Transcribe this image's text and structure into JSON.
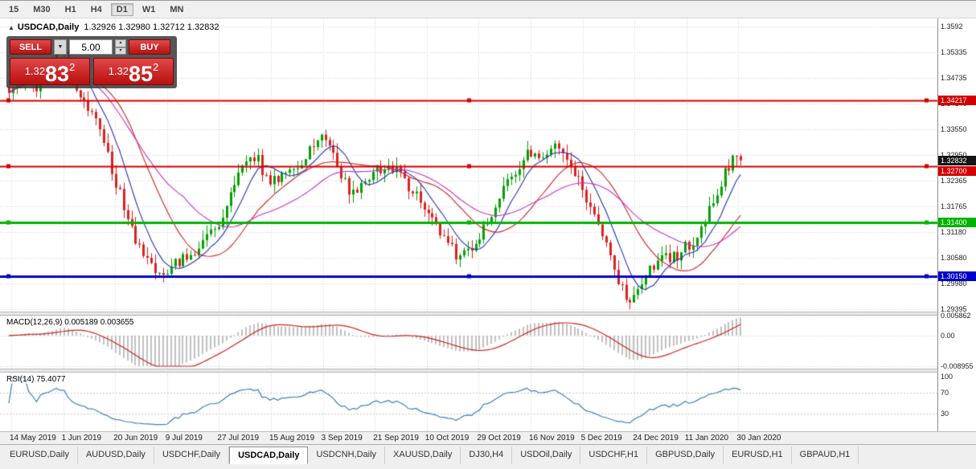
{
  "toolbar": {
    "timeframes": [
      {
        "label": "15",
        "active": false
      },
      {
        "label": "M30",
        "active": false
      },
      {
        "label": "H1",
        "active": false
      },
      {
        "label": "H4",
        "active": false
      },
      {
        "label": "D1",
        "active": true
      },
      {
        "label": "W1",
        "active": false
      },
      {
        "label": "MN",
        "active": false
      }
    ]
  },
  "chart": {
    "collapse_icon": "▲",
    "symbol_title": "USDCAD,Daily",
    "ohlc": "1.32926 1.32980 1.32712 1.32832"
  },
  "trade_panel": {
    "sell_label": "SELL",
    "buy_label": "BUY",
    "volume": "5.00",
    "sell_price": {
      "prefix": "1.32",
      "big": "83",
      "sup": "2"
    },
    "buy_price": {
      "prefix": "1.32",
      "big": "85",
      "sup": "2"
    }
  },
  "price_scale": {
    "labels": [
      {
        "text": "1.3592",
        "value": 1.3592
      },
      {
        "text": "1.35335",
        "value": 1.35335
      },
      {
        "text": "1.34735",
        "value": 1.34735
      },
      {
        "text": "1.34140",
        "value": 1.3414
      },
      {
        "text": "1.33550",
        "value": 1.3355
      },
      {
        "text": "1.32950",
        "value": 1.3295
      },
      {
        "text": "1.32365",
        "value": 1.32365
      },
      {
        "text": "1.31765",
        "value": 1.31765
      },
      {
        "text": "1.31180",
        "value": 1.3118
      },
      {
        "text": "1.30580",
        "value": 1.3058
      },
      {
        "text": "1.29980",
        "value": 1.2998
      },
      {
        "text": "1.29395",
        "value": 1.29395
      }
    ],
    "badges": [
      {
        "name": "hline-badge-134217",
        "text": "1.34217",
        "price": 1.34217,
        "bg": "#d40000",
        "fg": "#ffffff"
      },
      {
        "name": "current-price-badge",
        "text": "1.32832",
        "price": 1.32832,
        "bg": "#141414",
        "fg": "#ffffff"
      },
      {
        "name": "hline-badge-132700",
        "text": "1.32700",
        "price": 1.327,
        "bg": "#d40000",
        "fg": "#ffffff"
      },
      {
        "name": "hline-badge-131400",
        "text": "1.31400",
        "price": 1.314,
        "bg": "#00b400",
        "fg": "#ffffff"
      },
      {
        "name": "hline-badge-130150",
        "text": "1.30150",
        "price": 1.3015,
        "bg": "#0000c8",
        "fg": "#ffffff"
      }
    ]
  },
  "indicators": {
    "macd": {
      "label": "MACD(12,26,9) 0.005189 0.003655",
      "scale_labels": [
        {
          "text": "0.005862",
          "value": 0.005862
        },
        {
          "text": "0.00",
          "value": 0
        },
        {
          "text": "-0.008955",
          "value": -0.008955
        }
      ]
    },
    "rsi": {
      "label": "RSI(14) 75.4077",
      "levels": [
        {
          "text": "100",
          "value": 100
        },
        {
          "text": "70",
          "value": 70
        },
        {
          "text": "30",
          "value": 30
        }
      ]
    }
  },
  "x_axis": {
    "dates": [
      "14 May 2019",
      "1 Jun 2019",
      "20 Jun 2019",
      "9 Jul 2019",
      "27 Jul 2019",
      "15 Aug 2019",
      "3 Sep 2019",
      "21 Sep 2019",
      "10 Oct 2019",
      "29 Oct 2019",
      "16 Nov 2019",
      "5 Dec 2019",
      "24 Dec 2019",
      "11 Jan 2020",
      "30 Jan 2020"
    ]
  },
  "tabs": [
    {
      "label": "EURUSD,Daily",
      "active": false
    },
    {
      "label": "AUDUSD,Daily",
      "active": false
    },
    {
      "label": "USDCHF,Daily",
      "active": false
    },
    {
      "label": "USDCAD,Daily",
      "active": true
    },
    {
      "label": "USDCNH,Daily",
      "active": false
    },
    {
      "label": "XAUUSD,Daily",
      "active": false
    },
    {
      "label": "DJ30,H4",
      "active": false
    },
    {
      "label": "USDOil,Daily",
      "active": false
    },
    {
      "label": "USDCHF,H1",
      "active": false
    },
    {
      "label": "GBPUSD,Daily",
      "active": false
    },
    {
      "label": "EURUSD,H1",
      "active": false
    },
    {
      "label": "GBPAUD,H1",
      "active": false
    }
  ],
  "chart_data": {
    "type": "candlestick",
    "symbol": "USDCAD",
    "timeframe": "Daily",
    "visible_range": {
      "start": "14 May 2019",
      "end": "30 Jan 2020"
    },
    "ylim": [
      1.29395,
      1.3592
    ],
    "num_candles": 186,
    "last_candle": {
      "open": 1.32926,
      "high": 1.3298,
      "low": 1.32712,
      "close": 1.32832
    },
    "price_path": [
      [
        0.0,
        1.345
      ],
      [
        0.02,
        1.347
      ],
      [
        0.04,
        1.3455
      ],
      [
        0.055,
        1.3505
      ],
      [
        0.068,
        1.355
      ],
      [
        0.078,
        1.3525
      ],
      [
        0.09,
        1.3455
      ],
      [
        0.105,
        1.3415
      ],
      [
        0.12,
        1.337
      ],
      [
        0.135,
        1.329
      ],
      [
        0.15,
        1.321
      ],
      [
        0.165,
        1.313
      ],
      [
        0.18,
        1.3075
      ],
      [
        0.2,
        1.3035
      ],
      [
        0.215,
        1.3025
      ],
      [
        0.23,
        1.3045
      ],
      [
        0.25,
        1.307
      ],
      [
        0.27,
        1.3105
      ],
      [
        0.29,
        1.315
      ],
      [
        0.305,
        1.3205
      ],
      [
        0.318,
        1.3265
      ],
      [
        0.33,
        1.33
      ],
      [
        0.342,
        1.328
      ],
      [
        0.355,
        1.3225
      ],
      [
        0.37,
        1.325
      ],
      [
        0.39,
        1.327
      ],
      [
        0.405,
        1.3285
      ],
      [
        0.418,
        1.333
      ],
      [
        0.428,
        1.3355
      ],
      [
        0.44,
        1.331
      ],
      [
        0.455,
        1.3245
      ],
      [
        0.468,
        1.3205
      ],
      [
        0.48,
        1.3225
      ],
      [
        0.495,
        1.325
      ],
      [
        0.51,
        1.3268
      ],
      [
        0.525,
        1.326
      ],
      [
        0.54,
        1.324
      ],
      [
        0.555,
        1.3205
      ],
      [
        0.57,
        1.317
      ],
      [
        0.585,
        1.313
      ],
      [
        0.6,
        1.309
      ],
      [
        0.615,
        1.3058
      ],
      [
        0.63,
        1.3075
      ],
      [
        0.645,
        1.311
      ],
      [
        0.66,
        1.316
      ],
      [
        0.675,
        1.321
      ],
      [
        0.69,
        1.3255
      ],
      [
        0.705,
        1.329
      ],
      [
        0.715,
        1.3305
      ],
      [
        0.73,
        1.3295
      ],
      [
        0.745,
        1.331
      ],
      [
        0.76,
        1.3285
      ],
      [
        0.775,
        1.3245
      ],
      [
        0.788,
        1.3195
      ],
      [
        0.8,
        1.3165
      ],
      [
        0.812,
        1.311
      ],
      [
        0.825,
        1.304
      ],
      [
        0.838,
        1.2985
      ],
      [
        0.852,
        1.2958
      ],
      [
        0.865,
        1.2995
      ],
      [
        0.878,
        1.304
      ],
      [
        0.89,
        1.305
      ],
      [
        0.905,
        1.3058
      ],
      [
        0.92,
        1.3072
      ],
      [
        0.935,
        1.31
      ],
      [
        0.95,
        1.314
      ],
      [
        0.965,
        1.3195
      ],
      [
        0.978,
        1.325
      ],
      [
        0.99,
        1.3293
      ],
      [
        1.0,
        1.3283
      ]
    ],
    "horizontal_lines": [
      {
        "price": 1.34217,
        "color": "#d40000",
        "width": 2
      },
      {
        "price": 1.327,
        "color": "#d40000",
        "width": 2
      },
      {
        "price": 1.314,
        "color": "#00b400",
        "width": 3
      },
      {
        "price": 1.3015,
        "color": "#0000c8",
        "width": 3
      }
    ],
    "moving_averages": [
      {
        "type": "SMA",
        "period": 8,
        "color": "#2233bb"
      },
      {
        "type": "SMA",
        "period": 20,
        "color": "#cc2222"
      },
      {
        "type": "WMA",
        "period": 45,
        "color": "#c832c8"
      }
    ],
    "macd": {
      "fast": 12,
      "slow": 26,
      "signal": 9,
      "current": 0.005189,
      "current_signal": 0.003655,
      "range": [
        -0.008955,
        0.005862
      ]
    },
    "rsi": {
      "period": 14,
      "current": 75.4077,
      "levels": [
        70,
        30
      ]
    },
    "colors": {
      "up": "#00a000",
      "down": "#dd2020",
      "grid": "#d4d4d4",
      "macd_hist": "#c0c0c0",
      "macd_signal": "#cc2222",
      "rsi": "#3a7fc1"
    }
  }
}
